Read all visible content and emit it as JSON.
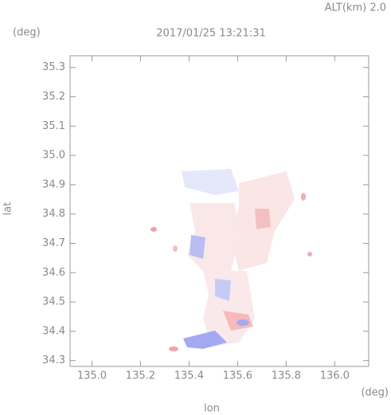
{
  "chart_data": {
    "type": "map",
    "title": "2017/01/25 13:21:31",
    "subtitle": "ALT(km) 2.0",
    "x_label": "lon",
    "y_label": "lat",
    "x_unit": "(deg)",
    "y_unit": "(deg)",
    "xlim": [
      134.91,
      136.14
    ],
    "ylim": [
      34.28,
      35.34
    ],
    "xticks": [
      {
        "value": 135,
        "label": "135.0"
      },
      135.2,
      135.4,
      135.6,
      135.8,
      {
        "value": 136,
        "label": "136.0"
      }
    ],
    "yticks": [
      34.3,
      34.4,
      34.5,
      34.6,
      34.7,
      34.8,
      34.9,
      {
        "value": 35,
        "label": "35.0"
      },
      35.1,
      35.2,
      35.3
    ]
  }
}
